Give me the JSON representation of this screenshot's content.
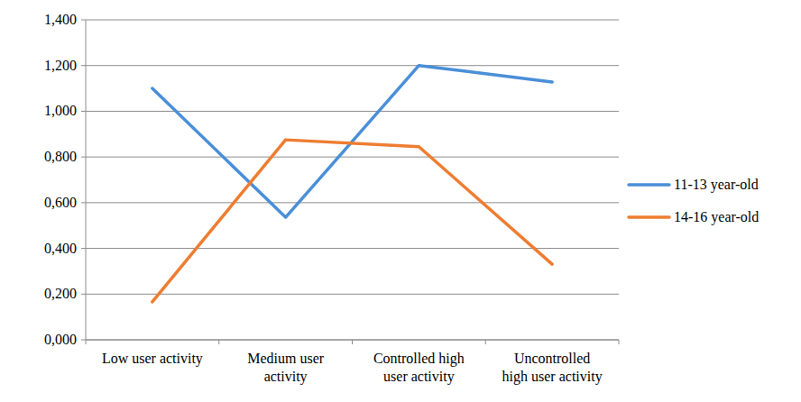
{
  "chart_data": {
    "type": "line",
    "categories": [
      "Low user activity",
      "Medium user activity",
      "Controlled high user activity",
      "Uncontrolled high user activity"
    ],
    "series": [
      {
        "name": "11-13 year-old",
        "color": "#4a8fd8",
        "values": [
          1.1,
          0.536,
          1.2,
          1.128
        ]
      },
      {
        "name": "14-16 year-old",
        "color": "#ee7d31",
        "values": [
          0.166,
          0.875,
          0.845,
          0.331
        ]
      }
    ],
    "ylim": [
      0,
      1.4
    ],
    "yticks": [
      {
        "value": 0,
        "label": "0,000"
      },
      {
        "value": 0.2,
        "label": "0,200"
      },
      {
        "value": 0.4,
        "label": "0,400"
      },
      {
        "value": 0.6,
        "label": "0,600"
      },
      {
        "value": 0.8,
        "label": "0,800"
      },
      {
        "value": 1,
        "label": "1,000"
      },
      {
        "value": 1.2,
        "label": "1,200"
      },
      {
        "value": 1.4,
        "label": "1,400"
      }
    ],
    "grid": true,
    "legend": "right"
  }
}
